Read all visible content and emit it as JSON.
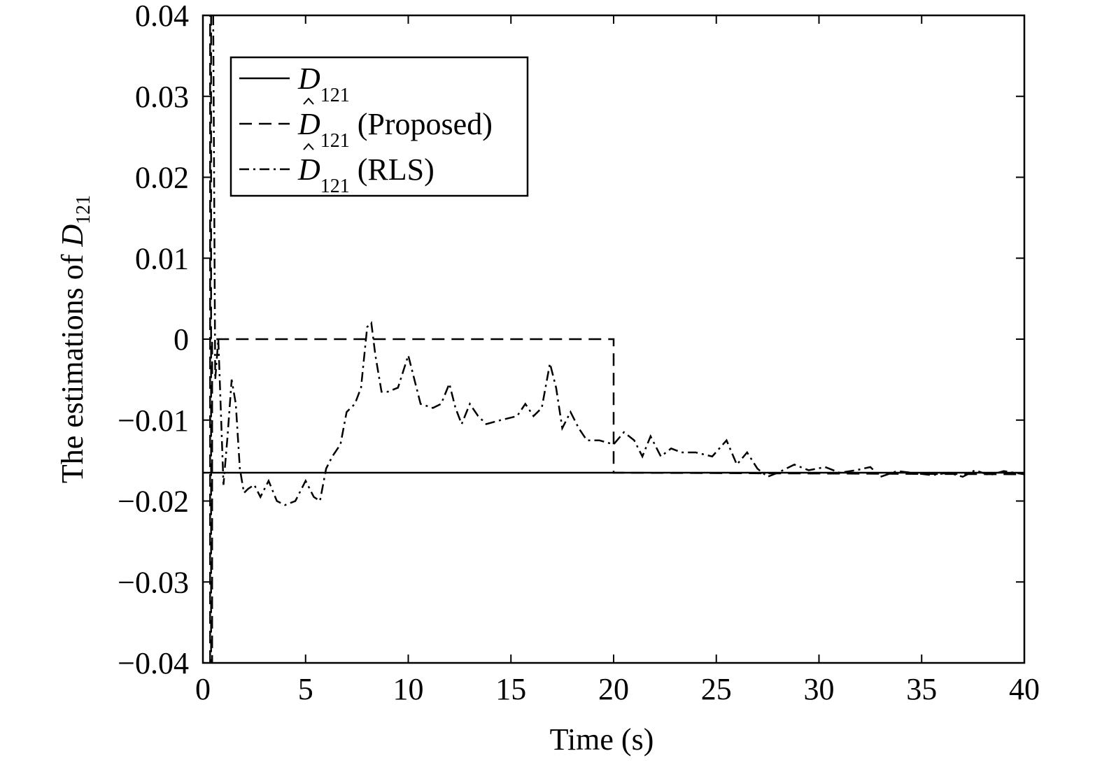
{
  "chart_data": {
    "type": "line",
    "title": "",
    "xlabel": "Time (s)",
    "ylabel": {
      "prefix": "The estimations of ",
      "symbol": "D",
      "subscript": "121"
    },
    "xlim": [
      0,
      40
    ],
    "ylim": [
      -0.04,
      0.04
    ],
    "xticks": [
      0,
      5,
      10,
      15,
      20,
      25,
      30,
      35,
      40
    ],
    "xtick_labels": [
      "0",
      "5",
      "10",
      "15",
      "20",
      "25",
      "30",
      "35",
      "40"
    ],
    "yticks": [
      0.04,
      0.03,
      0.02,
      0.01,
      0,
      -0.01,
      -0.02,
      -0.03,
      -0.04
    ],
    "ytick_labels": [
      "0.04",
      "0.03",
      "0.02",
      "0.01",
      "0",
      "−0.01",
      "−0.02",
      "−0.03",
      "−0.04"
    ],
    "grid": false,
    "legend_position": "top-left",
    "series": [
      {
        "symbol": "D",
        "subscript": "121",
        "hat": false,
        "suffix": "",
        "style": "solid",
        "points": [
          [
            0,
            -0.0165
          ],
          [
            40,
            -0.0165
          ]
        ]
      },
      {
        "symbol": "D",
        "subscript": "121",
        "hat": true,
        "suffix": " (Proposed)",
        "style": "dashed",
        "points": [
          [
            0.35,
            -0.04
          ],
          [
            0.35,
            0.04
          ],
          [
            0.4,
            0.04
          ],
          [
            0.4,
            -0.04
          ],
          [
            0.45,
            -0.04
          ],
          [
            0.45,
            0.0
          ],
          [
            20,
            0.0
          ],
          [
            20,
            -0.0165
          ],
          [
            40,
            -0.0167
          ]
        ]
      },
      {
        "symbol": "D",
        "subscript": "121",
        "hat": true,
        "suffix": " (RLS)",
        "style": "dashdot",
        "points": [
          [
            0.5,
            0.04
          ],
          [
            0.6,
            -0.005
          ],
          [
            0.75,
            0.0
          ],
          [
            1.0,
            -0.018
          ],
          [
            1.2,
            -0.012
          ],
          [
            1.4,
            -0.005
          ],
          [
            1.6,
            -0.008
          ],
          [
            1.8,
            -0.016
          ],
          [
            2.0,
            -0.019
          ],
          [
            2.2,
            -0.0185
          ],
          [
            2.5,
            -0.018
          ],
          [
            2.8,
            -0.0195
          ],
          [
            3.2,
            -0.0175
          ],
          [
            3.6,
            -0.02
          ],
          [
            4.0,
            -0.0205
          ],
          [
            4.5,
            -0.02
          ],
          [
            5.0,
            -0.0175
          ],
          [
            5.4,
            -0.0195
          ],
          [
            5.7,
            -0.02
          ],
          [
            6.0,
            -0.016
          ],
          [
            6.3,
            -0.0145
          ],
          [
            6.7,
            -0.013
          ],
          [
            7.0,
            -0.009
          ],
          [
            7.4,
            -0.008
          ],
          [
            7.7,
            -0.006
          ],
          [
            8.0,
            0.0015
          ],
          [
            8.2,
            0.002
          ],
          [
            8.4,
            -0.002
          ],
          [
            8.7,
            -0.0065
          ],
          [
            9.0,
            -0.0065
          ],
          [
            9.5,
            -0.006
          ],
          [
            10.0,
            -0.002
          ],
          [
            10.3,
            -0.005
          ],
          [
            10.6,
            -0.008
          ],
          [
            11.2,
            -0.0085
          ],
          [
            11.6,
            -0.008
          ],
          [
            12.0,
            -0.0055
          ],
          [
            12.3,
            -0.0085
          ],
          [
            12.6,
            -0.0105
          ],
          [
            13.0,
            -0.008
          ],
          [
            13.4,
            -0.0095
          ],
          [
            13.8,
            -0.0105
          ],
          [
            14.5,
            -0.01
          ],
          [
            15.3,
            -0.0095
          ],
          [
            15.7,
            -0.008
          ],
          [
            16.1,
            -0.0095
          ],
          [
            16.5,
            -0.0085
          ],
          [
            16.9,
            -0.003
          ],
          [
            17.2,
            -0.006
          ],
          [
            17.5,
            -0.011
          ],
          [
            17.9,
            -0.009
          ],
          [
            18.3,
            -0.011
          ],
          [
            18.7,
            -0.0125
          ],
          [
            19.3,
            -0.0125
          ],
          [
            20.0,
            -0.013
          ],
          [
            20.5,
            -0.0115
          ],
          [
            21.0,
            -0.0125
          ],
          [
            21.4,
            -0.0145
          ],
          [
            21.8,
            -0.012
          ],
          [
            22.3,
            -0.0145
          ],
          [
            22.8,
            -0.0135
          ],
          [
            23.3,
            -0.014
          ],
          [
            24.0,
            -0.014
          ],
          [
            24.8,
            -0.0145
          ],
          [
            25.5,
            -0.0125
          ],
          [
            26.0,
            -0.0155
          ],
          [
            26.5,
            -0.014
          ],
          [
            27.0,
            -0.016
          ],
          [
            27.5,
            -0.017
          ],
          [
            28.0,
            -0.0165
          ],
          [
            28.8,
            -0.0155
          ],
          [
            29.5,
            -0.0162
          ],
          [
            30.3,
            -0.0158
          ],
          [
            31.0,
            -0.0165
          ],
          [
            31.8,
            -0.0162
          ],
          [
            32.5,
            -0.0158
          ],
          [
            33.0,
            -0.017
          ],
          [
            33.8,
            -0.0163
          ],
          [
            34.5,
            -0.0165
          ],
          [
            35.5,
            -0.0168
          ],
          [
            36.3,
            -0.0165
          ],
          [
            37.0,
            -0.017
          ],
          [
            37.6,
            -0.0162
          ],
          [
            38.3,
            -0.0168
          ],
          [
            39.0,
            -0.0163
          ],
          [
            40.0,
            -0.0167
          ]
        ]
      }
    ]
  }
}
